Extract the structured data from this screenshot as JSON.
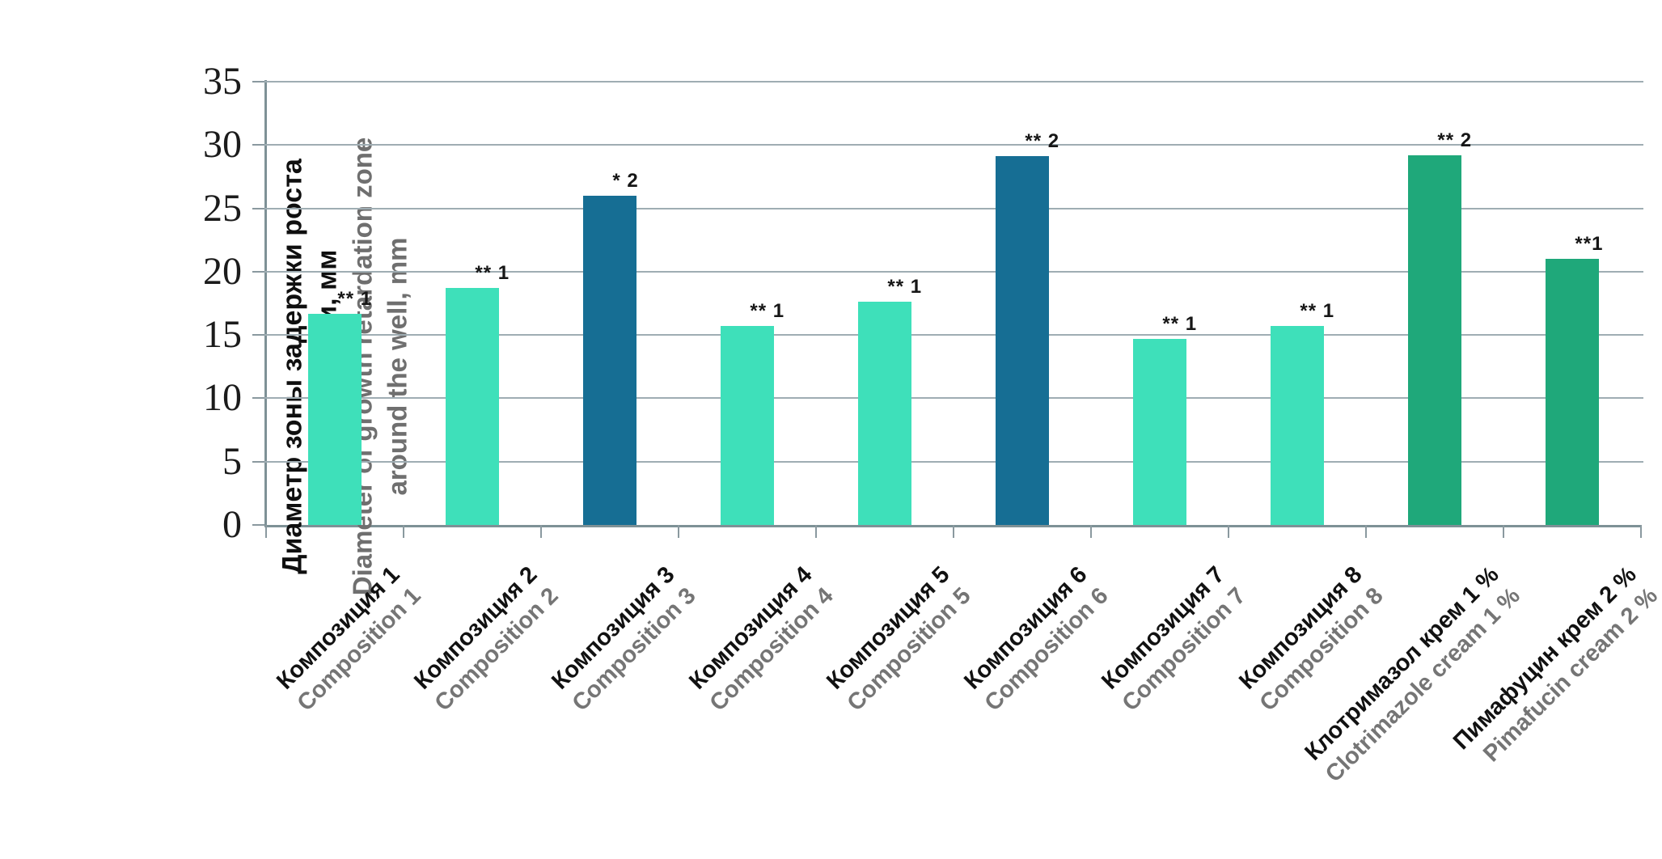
{
  "colors": {
    "mint": "#3EE0BA",
    "blue": "#166E94",
    "green": "#1FA87A",
    "grid": "#9FADB3",
    "axis": "#7E9196"
  },
  "y_axis": {
    "ticks": [
      0,
      5,
      10,
      15,
      20,
      25,
      30,
      35
    ],
    "title_ru_line1": "Диаметр зоны задержки роста",
    "title_ru_line2": "вокруг лунки, мм",
    "title_en_line1": "Diameter of growth retardation zone",
    "title_en_line2": "around the well, mm"
  },
  "bars": [
    {
      "ru": "Композиция 1",
      "en": "Composition 1",
      "value": 16.7,
      "annotation": "** 1",
      "color": "mint"
    },
    {
      "ru": "Композиция 2",
      "en": "Composition 2",
      "value": 18.7,
      "annotation": "** 1",
      "color": "mint"
    },
    {
      "ru": "Композиция 3",
      "en": "Composition 3",
      "value": 26,
      "annotation": "* 2",
      "color": "blue"
    },
    {
      "ru": "Композиция 4",
      "en": "Composition 4",
      "value": 15.7,
      "annotation": "** 1",
      "color": "mint"
    },
    {
      "ru": "Композиция 5",
      "en": "Composition 5",
      "value": 17.6,
      "annotation": "** 1",
      "color": "mint"
    },
    {
      "ru": "Композиция 6",
      "en": "Composition 6",
      "value": 29.1,
      "annotation": "** 2",
      "color": "blue"
    },
    {
      "ru": "Композиция 7",
      "en": "Composition 7",
      "value": 14.7,
      "annotation": "** 1",
      "color": "mint"
    },
    {
      "ru": "Композиция 8",
      "en": "Composition 8",
      "value": 15.7,
      "annotation": "** 1",
      "color": "mint"
    },
    {
      "ru": "Клотримазол крем 1 %",
      "en": "Clotrimazole cream 1 %",
      "value": 29.2,
      "annotation": "** 2",
      "color": "green"
    },
    {
      "ru": "Пимафуцин крем 2 %",
      "en": "Pimafucin cream 2 %",
      "value": 21,
      "annotation": "**1",
      "color": "green"
    }
  ],
  "chart_data": {
    "type": "bar",
    "categories_ru": [
      "Композиция 1",
      "Композиция 2",
      "Композиция 3",
      "Композиция 4",
      "Композиция 5",
      "Композиция 6",
      "Композиция 7",
      "Композиция 8",
      "Клотримазол крем 1 %",
      "Пимафуцин крем 2 %"
    ],
    "categories_en": [
      "Composition 1",
      "Composition 2",
      "Composition 3",
      "Composition 4",
      "Composition 5",
      "Composition 6",
      "Composition 7",
      "Composition 8",
      "Clotrimazole cream 1 %",
      "Pimafucin cream 2 %"
    ],
    "values": [
      16.7,
      18.7,
      26,
      15.7,
      17.6,
      29.1,
      14.7,
      15.7,
      29.2,
      21
    ],
    "annotations": [
      "** 1",
      "** 1",
      "* 2",
      "** 1",
      "** 1",
      "** 2",
      "** 1",
      "** 1",
      "** 2",
      "**1"
    ],
    "bar_colors": [
      "mint",
      "mint",
      "blue",
      "mint",
      "mint",
      "blue",
      "mint",
      "mint",
      "green",
      "green"
    ],
    "title": "",
    "xlabel": "",
    "ylabel_ru": "Диаметр зоны задержки роста вокруг лунки, мм",
    "ylabel_en": "Diameter of growth retardation zone around the well, mm",
    "ylim": [
      0,
      35
    ],
    "ytick_step": 5,
    "grid": true,
    "legend": false
  }
}
